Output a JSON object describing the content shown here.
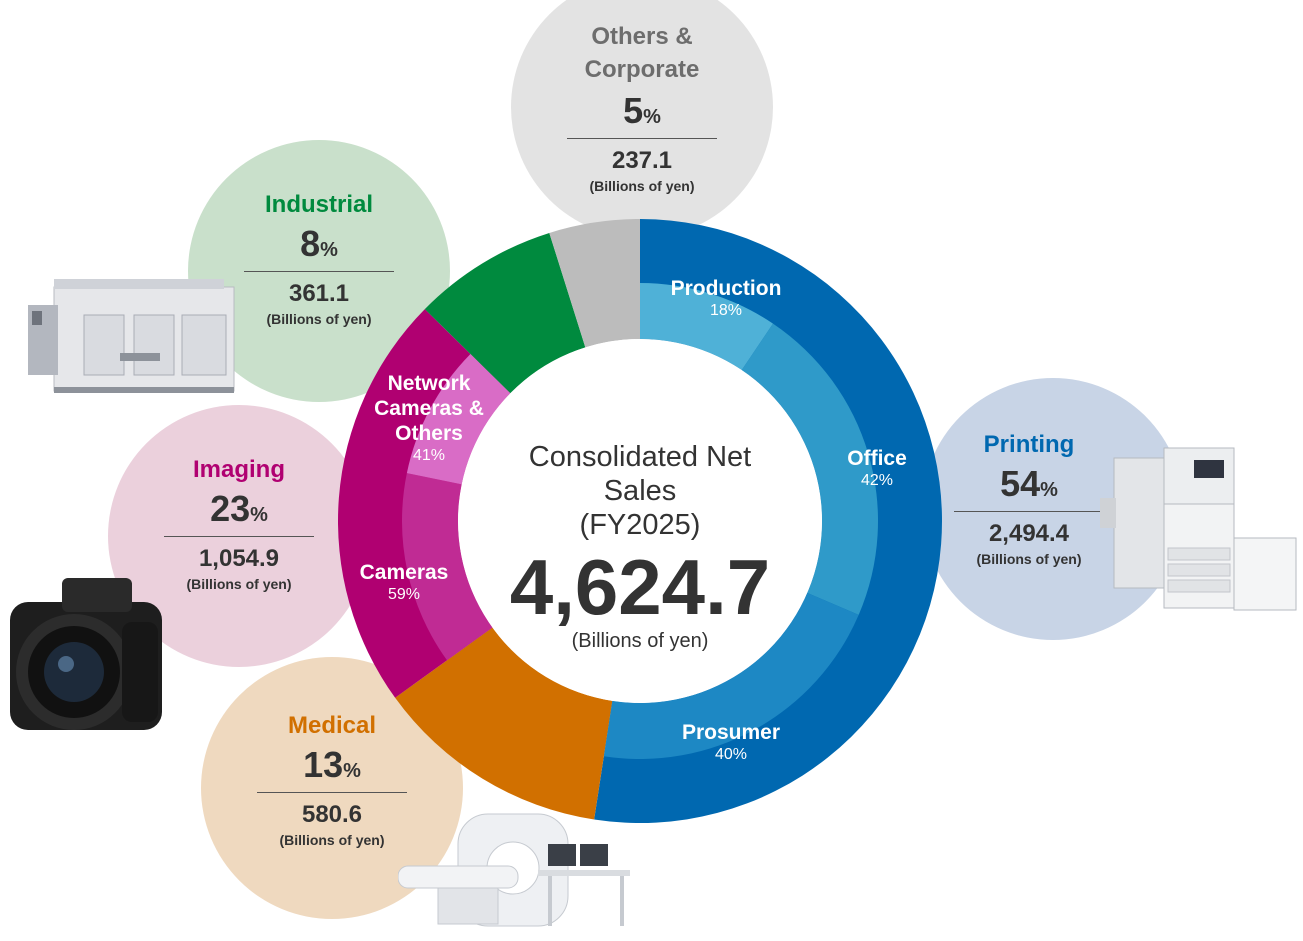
{
  "chart_data": {
    "type": "pie",
    "title": "Consolidated Net Sales",
    "subtitle": "(FY2025)",
    "total": "4,624.7",
    "total_unit": "(Billions of yen)",
    "segments": [
      {
        "name": "Printing",
        "percent": 54,
        "pct_suffix": "%",
        "value": "2,494.4",
        "unit": "(Billions of yen)",
        "color": "#0068b0",
        "bubble_color": "#c8d4e6",
        "name_color": "#0068b0",
        "sub": [
          {
            "name": "Production",
            "percent_label": "18%",
            "percent": 18,
            "color": "#4fb1d7"
          },
          {
            "name": "Office",
            "percent_label": "42%",
            "percent": 42,
            "color": "#2f9ac9"
          },
          {
            "name": "Prosumer",
            "percent_label": "40%",
            "percent": 40,
            "color": "#1d88c4"
          }
        ]
      },
      {
        "name": "Medical",
        "percent": 13,
        "pct_suffix": "%",
        "value": "580.6",
        "unit": "(Billions of yen)",
        "color": "#d17000",
        "bubble_color": "#efd9bf",
        "name_color": "#d17000"
      },
      {
        "name": "Imaging",
        "percent": 23,
        "pct_suffix": "%",
        "value": "1,054.9",
        "unit": "(Billions of yen)",
        "color": "#b00071",
        "bubble_color": "#ebd0dc",
        "name_color": "#b00071",
        "sub": [
          {
            "name": "Cameras",
            "percent_label": "59%",
            "percent": 59,
            "color": "#c02b94"
          },
          {
            "name": "Network Cameras & Others",
            "percent_label": "41%",
            "percent": 41,
            "color": "#d96cc6"
          }
        ]
      },
      {
        "name": "Industrial",
        "percent": 8,
        "pct_suffix": "%",
        "value": "361.1",
        "unit": "(Billions of yen)",
        "color": "#008a3e",
        "bubble_color": "#c9e0cb",
        "name_color": "#008a3e"
      },
      {
        "name": "Others & Corporate",
        "percent": 5,
        "pct_suffix": "%",
        "value": "237.1",
        "unit": "(Billions of yen)",
        "color": "#bcbcbc",
        "bubble_color": "#e3e3e3",
        "name_color": "#6d6d6d"
      }
    ]
  },
  "labels": {
    "printing_name": "Printing",
    "medical_name": "Medical",
    "imaging_name": "Imaging",
    "industrial_name": "Industrial",
    "others_name_l1": "Others &",
    "others_name_l2": "Corporate",
    "network_l1": "Network",
    "network_l2": "Cameras &",
    "network_l3": "Others"
  }
}
